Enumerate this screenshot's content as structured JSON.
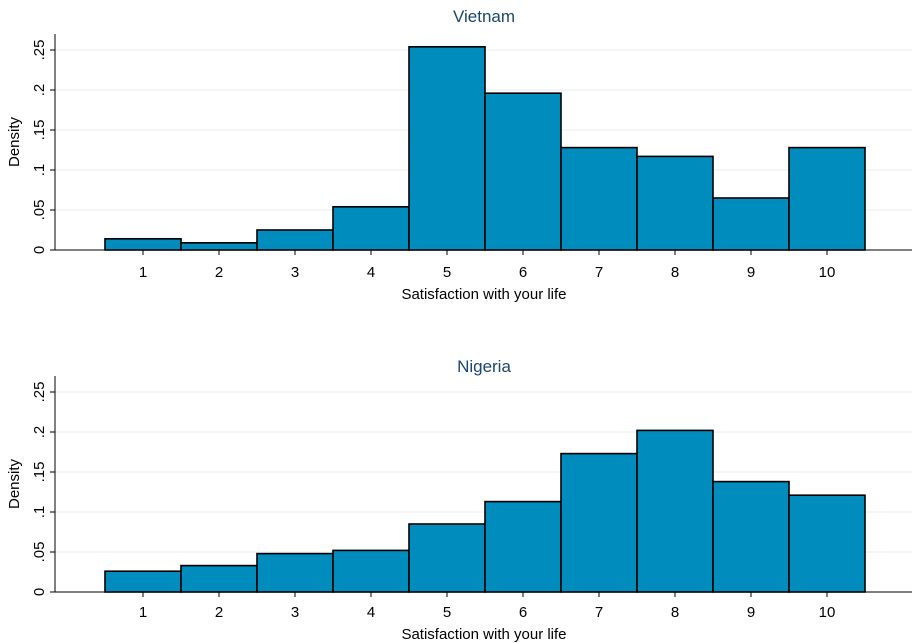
{
  "chart_data": [
    {
      "type": "bar",
      "title": "Vietnam",
      "xlabel": "Satisfaction with your life",
      "ylabel": "Density",
      "categories": [
        "1",
        "2",
        "3",
        "4",
        "5",
        "6",
        "7",
        "8",
        "9",
        "10"
      ],
      "values": [
        0.014,
        0.009,
        0.025,
        0.054,
        0.254,
        0.196,
        0.128,
        0.117,
        0.065,
        0.128
      ],
      "ylim": [
        0,
        0.27
      ],
      "yticks": [
        0,
        0.05,
        0.1,
        0.15,
        0.2,
        0.25
      ],
      "ytick_labels": [
        "0",
        ".05",
        ".1",
        ".15",
        ".2",
        ".25"
      ],
      "grid": true,
      "bar_color": "#008cbc"
    },
    {
      "type": "bar",
      "title": "Nigeria",
      "xlabel": "Satisfaction with your life",
      "ylabel": "Density",
      "categories": [
        "1",
        "2",
        "3",
        "4",
        "5",
        "6",
        "7",
        "8",
        "9",
        "10"
      ],
      "values": [
        0.026,
        0.033,
        0.048,
        0.052,
        0.085,
        0.113,
        0.173,
        0.202,
        0.138,
        0.121
      ],
      "ylim": [
        0,
        0.27
      ],
      "yticks": [
        0,
        0.05,
        0.1,
        0.15,
        0.2,
        0.25
      ],
      "ytick_labels": [
        "0",
        ".05",
        ".1",
        ".15",
        ".2",
        ".25"
      ],
      "grid": true,
      "bar_color": "#008cbc"
    }
  ]
}
